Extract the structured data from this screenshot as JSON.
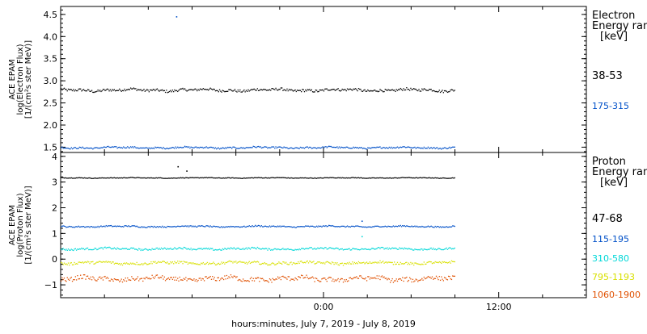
{
  "chart_data": [
    {
      "type": "scatter",
      "panel": "electron",
      "ylabel": [
        "ACE EPAM",
        "log(Electron Flux)",
        "[1/(cm²s ster MeV)]"
      ],
      "ylim": [
        1.38,
        4.68
      ],
      "yticks": [
        1.5,
        2.0,
        2.5,
        3.0,
        3.5,
        4.0,
        4.5
      ],
      "ytick_labels": [
        "1.5",
        "2.0",
        "2.5",
        "3.0",
        "3.5",
        "4.0",
        "4.5"
      ],
      "legend_title": [
        "Electron",
        "Energy ran",
        "[keV]"
      ],
      "grid": false,
      "series": [
        {
          "name": "38-53",
          "color": "#000000",
          "level": 2.8,
          "spread": 0.05,
          "spikes": []
        },
        {
          "name": "175-315",
          "color": "#0050c8",
          "level": 1.5,
          "spread": 0.03,
          "spikes": [
            [
              -10.1,
              4.46
            ]
          ]
        }
      ]
    },
    {
      "type": "scatter",
      "panel": "proton",
      "ylabel": [
        "ACE EPAM",
        "log(Proton Flux)",
        "[1/(cm²s ster MeV)]"
      ],
      "ylim": [
        -1.5,
        4.15
      ],
      "yticks": [
        -1,
        0,
        1,
        2,
        3,
        4
      ],
      "ytick_labels": [
        "−1",
        "0",
        "1",
        "2",
        "3",
        "4"
      ],
      "legend_title": [
        "Proton",
        "Energy ran",
        "[keV]"
      ],
      "grid": false,
      "series": [
        {
          "name": "47-68",
          "color": "#000000",
          "level": 3.18,
          "spread": 0.02,
          "spikes": [
            [
              -10.0,
              3.62
            ],
            [
              -9.4,
              3.45
            ]
          ]
        },
        {
          "name": "115-195",
          "color": "#0050c8",
          "level": 1.29,
          "spread": 0.04,
          "spikes": [
            [
              2.6,
              1.5
            ]
          ]
        },
        {
          "name": "310-580",
          "color": "#00d8d8",
          "level": 0.42,
          "spread": 0.06,
          "spikes": [
            [
              2.6,
              0.9
            ]
          ]
        },
        {
          "name": "795-1193",
          "color": "#d8e000",
          "level": -0.13,
          "spread": 0.08,
          "spikes": []
        },
        {
          "name": "1060-1900",
          "color": "#e05000",
          "level": -0.75,
          "spread": 0.14,
          "spikes": []
        }
      ]
    }
  ],
  "x_axis": {
    "range_hours": [
      -18,
      18
    ],
    "data_end_hour": 9,
    "major_ticks": [
      0,
      12
    ],
    "tick_labels": [
      "0:00",
      "12:00"
    ],
    "minor_tick_step": 3,
    "label": "hours:minutes, July  7, 2019 - July  8, 2019"
  }
}
